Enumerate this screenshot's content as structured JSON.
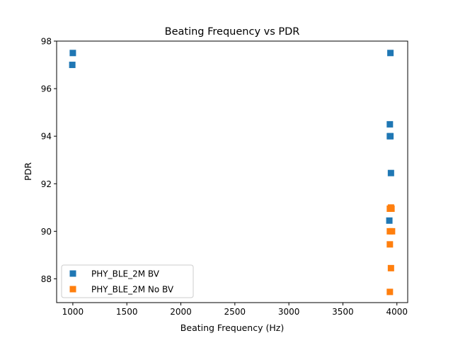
{
  "chart_data": {
    "type": "scatter",
    "title": "Beating Frequency vs PDR",
    "xlabel": "Beating Frequency (Hz)",
    "ylabel": "PDR",
    "xlim": [
      850,
      4100
    ],
    "ylim": [
      87.0,
      98.0
    ],
    "xticks": [
      1000,
      1500,
      2000,
      2500,
      3000,
      3500,
      4000
    ],
    "yticks": [
      88,
      90,
      92,
      94,
      96,
      98
    ],
    "grid": false,
    "legend_position": "lower-left",
    "marker": "square",
    "series": [
      {
        "name": "PHY_BLE_2M BV",
        "color": "#1f77b4",
        "points": [
          {
            "x": 1000,
            "y": 97.5
          },
          {
            "x": 995,
            "y": 97.0
          },
          {
            "x": 3940,
            "y": 97.5
          },
          {
            "x": 3935,
            "y": 94.5
          },
          {
            "x": 3935,
            "y": 94.0
          },
          {
            "x": 3940,
            "y": 94.0
          },
          {
            "x": 3945,
            "y": 92.45
          },
          {
            "x": 3930,
            "y": 90.45
          }
        ]
      },
      {
        "name": "PHY_BLE_2M No BV",
        "color": "#ff7f0e",
        "points": [
          {
            "x": 3935,
            "y": 90.95
          },
          {
            "x": 3945,
            "y": 91.0
          },
          {
            "x": 3950,
            "y": 90.95
          },
          {
            "x": 3935,
            "y": 90.0
          },
          {
            "x": 3955,
            "y": 90.0
          },
          {
            "x": 3935,
            "y": 89.45
          },
          {
            "x": 3945,
            "y": 88.45
          },
          {
            "x": 3935,
            "y": 87.45
          }
        ]
      }
    ]
  }
}
